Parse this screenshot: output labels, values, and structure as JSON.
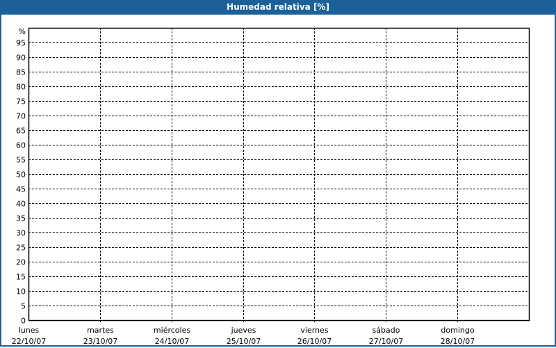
{
  "window": {
    "title": "Humedad relativa [%]"
  },
  "chart_data": {
    "type": "line",
    "title": "Humedad relativa [%]",
    "ylabel": "%",
    "ylim": [
      0,
      100
    ],
    "yticks": [
      0,
      5,
      10,
      15,
      20,
      25,
      30,
      35,
      40,
      45,
      50,
      55,
      60,
      65,
      70,
      75,
      80,
      85,
      90,
      95
    ],
    "categories": [
      {
        "day": "lunes",
        "date": "22/10/07"
      },
      {
        "day": "martes",
        "date": "23/10/07"
      },
      {
        "day": "miércoles",
        "date": "24/10/07"
      },
      {
        "day": "jueves",
        "date": "25/10/07"
      },
      {
        "day": "viernes",
        "date": "26/10/07"
      },
      {
        "day": "sábado",
        "date": "27/10/07"
      },
      {
        "day": "domingo",
        "date": "28/10/07"
      }
    ],
    "series": [],
    "grid": true,
    "colors": {
      "titlebar": "#1c6099",
      "grid": "#000000"
    }
  }
}
